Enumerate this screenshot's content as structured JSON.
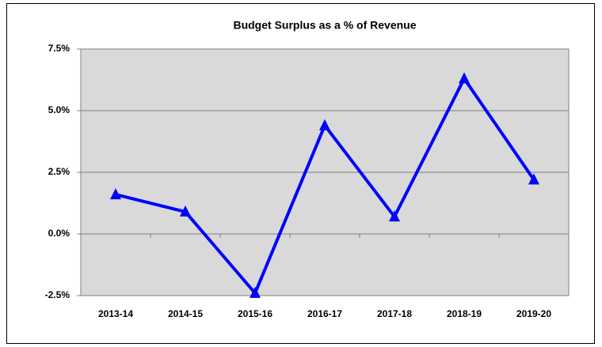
{
  "chart_data": {
    "type": "line",
    "title": "Budget Surplus as a % of Revenue",
    "categories": [
      "2013-14",
      "2014-15",
      "2015-16",
      "2016-17",
      "2017-18",
      "2018-19",
      "2019-20"
    ],
    "values": [
      1.6,
      0.9,
      -2.4,
      4.4,
      0.7,
      6.3,
      2.2
    ],
    "color": "#0000ff",
    "ylim": [
      -2.5,
      7.5
    ],
    "yticks": [
      {
        "value": -2.5,
        "label": "-2.5%"
      },
      {
        "value": 0,
        "label": "0.0%"
      },
      {
        "value": 2.5,
        "label": "2.5%"
      },
      {
        "value": 5,
        "label": "5.0%"
      },
      {
        "value": 7.5,
        "label": "7.5%"
      }
    ],
    "grid": true
  }
}
